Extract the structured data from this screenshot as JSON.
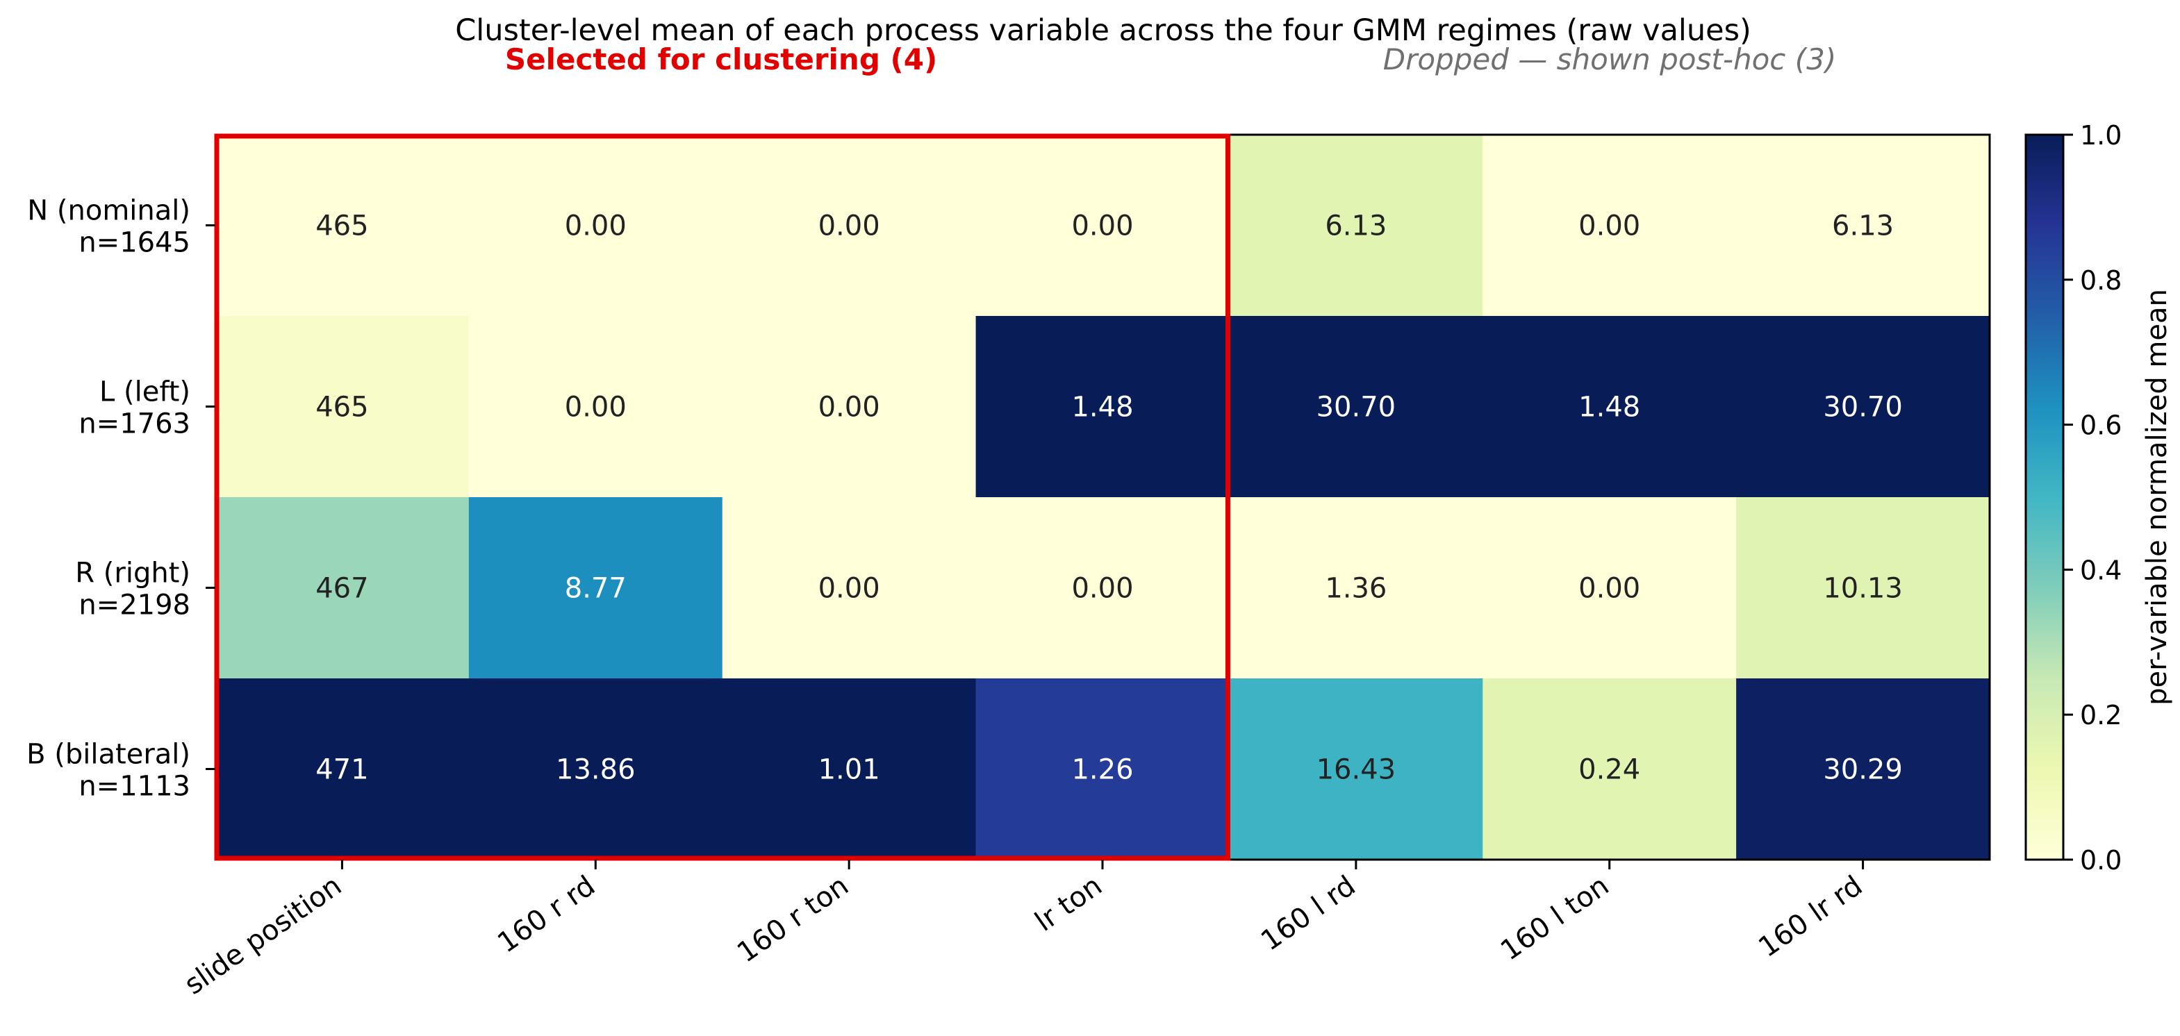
{
  "chart_data": {
    "type": "heatmap",
    "title": "Cluster-level mean of each process variable across the four GMM regimes (raw values)",
    "group_labels": {
      "selected": "Selected for clustering (4)",
      "dropped": "Dropped — shown post-hoc (3)"
    },
    "x_categories": [
      "slide position",
      "160 r rd",
      "160 r ton",
      "lr ton",
      "160 l rd",
      "160 l ton",
      "160 lr rd"
    ],
    "y_categories": [
      {
        "line1": "N (nominal)",
        "line2": "n=1645"
      },
      {
        "line1": "L (left)",
        "line2": "n=1763"
      },
      {
        "line1": "R (right)",
        "line2": "n=2198"
      },
      {
        "line1": "B (bilateral)",
        "line2": "n=1113"
      }
    ],
    "cell_labels": [
      [
        "465",
        "0.00",
        "0.00",
        "0.00",
        "6.13",
        "0.00",
        "6.13"
      ],
      [
        "465",
        "0.00",
        "0.00",
        "1.48",
        "30.70",
        "1.48",
        "30.70"
      ],
      [
        "467",
        "8.77",
        "0.00",
        "0.00",
        "1.36",
        "0.00",
        "10.13"
      ],
      [
        "471",
        "13.86",
        "1.01",
        "1.26",
        "16.43",
        "0.24",
        "30.29"
      ]
    ],
    "normalized_values": [
      [
        0.0,
        0.0,
        0.0,
        0.0,
        0.16,
        0.0,
        0.0
      ],
      [
        0.05,
        0.0,
        0.0,
        1.0,
        1.0,
        1.0,
        1.0
      ],
      [
        0.33,
        0.63,
        0.0,
        0.0,
        0.0,
        0.0,
        0.17
      ],
      [
        1.0,
        1.0,
        1.0,
        0.85,
        0.51,
        0.16,
        0.98
      ]
    ],
    "selected_columns": 4,
    "colorbar": {
      "label": "per-variable normalized mean",
      "range": [
        0.0,
        1.0
      ],
      "ticks": [
        "0.0",
        "0.2",
        "0.4",
        "0.6",
        "0.8",
        "1.0"
      ],
      "colormap": "YlGnBu"
    },
    "colors": {
      "selected_highlight": "#e00000",
      "selected_label": "#e00000",
      "dropped_label": "#707070",
      "axis": "#000000"
    }
  }
}
